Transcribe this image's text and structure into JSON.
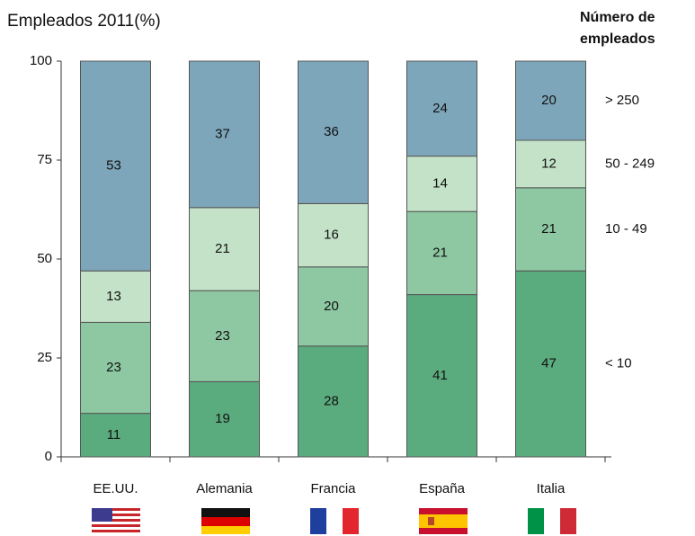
{
  "chart_data": {
    "type": "stacked_bar",
    "title": "Empleados 2011(%)",
    "legend_title": [
      "Número de",
      "empleados"
    ],
    "categories": [
      "EE.UU.",
      "Alemania",
      "Francia",
      "España",
      "Italia"
    ],
    "series": [
      {
        "name": "< 10",
        "color": "#5aab7e",
        "values": [
          11,
          19,
          28,
          41,
          47
        ]
      },
      {
        "name": "10 - 49",
        "color": "#8dc8a2",
        "values": [
          23,
          23,
          20,
          21,
          21
        ]
      },
      {
        "name": "50 - 249",
        "color": "#c3e2c8",
        "values": [
          13,
          21,
          16,
          14,
          12
        ]
      },
      {
        "name": "> 250",
        "color": "#7ea6ba",
        "values": [
          53,
          37,
          36,
          24,
          20
        ]
      }
    ],
    "ylim": [
      0,
      100
    ],
    "yticks": [
      0,
      25,
      50,
      75,
      100
    ],
    "grid": false
  }
}
